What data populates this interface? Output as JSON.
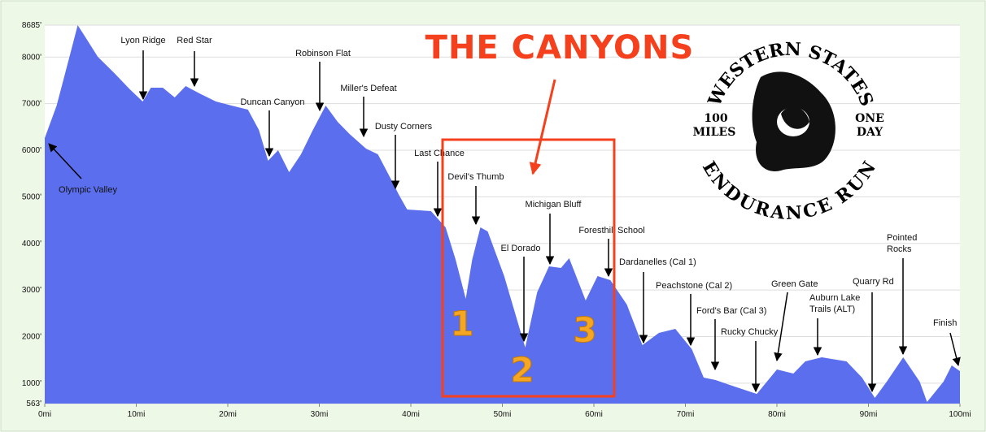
{
  "chart_data": {
    "type": "area",
    "title": "THE CANYONS",
    "canyon_numbers": [
      "1",
      "2",
      "3"
    ],
    "logo": {
      "top": "WESTERN STATES",
      "left_1": "100",
      "left_2": "MILES",
      "right_1": "ONE",
      "right_2": "DAY",
      "bottom": "ENDURANCE RUN"
    },
    "color": "#5b6fee",
    "grid": true,
    "x": [
      0,
      1.3,
      2.7,
      3.6,
      4.4,
      5.8,
      7.6,
      9.3,
      10.7,
      11.6,
      12.9,
      14.2,
      15.4,
      16.9,
      18.7,
      20.4,
      22.2,
      23.4,
      24.4,
      25.5,
      26.7,
      28,
      29.3,
      30.7,
      32,
      33.3,
      35.1,
      36.4,
      37.8,
      38.7,
      39.6,
      42.2,
      43.8,
      44.9,
      46,
      46.7,
      47.6,
      48.4,
      50.2,
      52.5,
      53.8,
      55.1,
      56.4,
      57.3,
      59.1,
      60.4,
      61.8,
      63.6,
      65.3,
      67.1,
      68.9,
      70.7,
      72,
      73.3,
      75.1,
      77.8,
      80,
      81.8,
      83.1,
      84.9,
      87.6,
      89.3,
      90.7,
      92,
      93.8,
      95.6,
      96.4,
      98.2,
      99.1,
      100
    ],
    "values": [
      6262,
      6960,
      8005,
      8685,
      8440,
      8005,
      7657,
      7308,
      7047,
      7343,
      7343,
      7134,
      7378,
      7221,
      7047,
      6960,
      6872,
      6437,
      5774,
      6000,
      5530,
      5913,
      6437,
      6960,
      6611,
      6349,
      6035,
      5913,
      5390,
      5042,
      4728,
      4693,
      4345,
      3648,
      2811,
      3648,
      4345,
      4258,
      3299,
      1765,
      2950,
      3508,
      3473,
      3683,
      2776,
      3299,
      3212,
      2689,
      1817,
      2079,
      2166,
      1730,
      1120,
      1068,
      946,
      771,
      1294,
      1207,
      1469,
      1556,
      1469,
      1120,
      685,
      1033,
      1556,
      1033,
      597,
      1033,
      1382,
      1260
    ],
    "xlim": [
      0,
      100
    ],
    "ylim": [
      563,
      8685
    ],
    "xticks": [
      {
        "value": 0,
        "label": "0mi"
      },
      {
        "value": 10,
        "label": "10mi"
      },
      {
        "value": 20,
        "label": "20mi"
      },
      {
        "value": 30,
        "label": "30mi"
      },
      {
        "value": 40,
        "label": "40mi"
      },
      {
        "value": 50,
        "label": "50mi"
      },
      {
        "value": 60,
        "label": "60mi"
      },
      {
        "value": 70,
        "label": "70mi"
      },
      {
        "value": 80,
        "label": "80mi"
      },
      {
        "value": 90,
        "label": "90mi"
      },
      {
        "value": 100,
        "label": "100mi"
      }
    ],
    "yticks": [
      {
        "value": 563,
        "label": "563'"
      },
      {
        "value": 1000,
        "label": "1000'"
      },
      {
        "value": 2000,
        "label": "2000'"
      },
      {
        "value": 3000,
        "label": "3000'"
      },
      {
        "value": 4000,
        "label": "4000'"
      },
      {
        "value": 5000,
        "label": "5000'"
      },
      {
        "value": 6000,
        "label": "6000'"
      },
      {
        "value": 7000,
        "label": "7000'"
      },
      {
        "value": 8000,
        "label": "8000'"
      },
      {
        "value": 8685,
        "label": "8685'"
      }
    ],
    "annotations": [
      {
        "lines": [
          "Olympic Valley"
        ]
      },
      {
        "lines": [
          "Lyon Ridge"
        ]
      },
      {
        "lines": [
          "Red Star"
        ]
      },
      {
        "lines": [
          "Robinson Flat"
        ]
      },
      {
        "lines": [
          "Miller's Defeat"
        ]
      },
      {
        "lines": [
          "Duncan Canyon"
        ]
      },
      {
        "lines": [
          "Dusty Corners"
        ]
      },
      {
        "lines": [
          "Last Chance"
        ]
      },
      {
        "lines": [
          "Devil's Thumb"
        ]
      },
      {
        "lines": [
          "Michigan Bluff"
        ]
      },
      {
        "lines": [
          "El Dorado"
        ]
      },
      {
        "lines": [
          "Foresthill School"
        ]
      },
      {
        "lines": [
          "Dardanelles (Cal 1)"
        ]
      },
      {
        "lines": [
          "Peachstone (Cal 2)"
        ]
      },
      {
        "lines": [
          "Ford's Bar (Cal 3)"
        ]
      },
      {
        "lines": [
          "Rucky Chucky"
        ]
      },
      {
        "lines": [
          "Green Gate"
        ]
      },
      {
        "lines": [
          "Auburn Lake",
          "Trails (ALT)"
        ]
      },
      {
        "lines": [
          "Quarry Rd"
        ]
      },
      {
        "lines": [
          "Pointed",
          "Rocks"
        ]
      },
      {
        "lines": [
          "Finish"
        ]
      }
    ]
  }
}
